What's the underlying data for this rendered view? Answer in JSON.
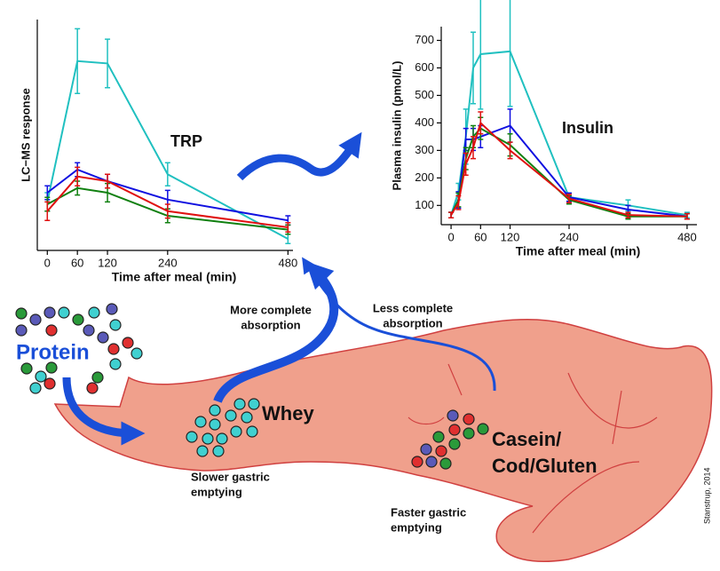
{
  "chart_data": [
    {
      "type": "line",
      "title": "TRP",
      "ylabel": "LC−MS response",
      "xlabel": "Time after meal (min)",
      "xlim": [
        -20,
        490
      ],
      "ylim": [
        0,
        100
      ],
      "xticks": [
        0,
        60,
        120,
        240,
        480
      ],
      "series": [
        {
          "color": "#20c0c0",
          "x": [
            0,
            60,
            120,
            240,
            480
          ],
          "values": [
            21,
            82,
            81,
            33,
            5
          ],
          "errors": [
            4,
            14,
            10.5,
            5,
            2
          ]
        },
        {
          "color": "#1010e0",
          "x": [
            0,
            60,
            120,
            240,
            480
          ],
          "values": [
            25,
            35,
            30,
            22,
            13
          ],
          "errors": [
            3,
            3,
            3,
            4,
            2
          ]
        },
        {
          "color": "#108010",
          "x": [
            0,
            60,
            120,
            240,
            480
          ],
          "values": [
            20,
            27,
            25,
            15,
            9
          ],
          "errors": [
            3,
            3,
            4,
            3,
            2
          ]
        },
        {
          "color": "#e01010",
          "x": [
            0,
            60,
            120,
            240,
            480
          ],
          "values": [
            17,
            32,
            30,
            17,
            10
          ],
          "errors": [
            4,
            4,
            3,
            3,
            2
          ]
        }
      ]
    },
    {
      "type": "line",
      "title": "Insulin",
      "ylabel": "Plasma insulin (pmol/L)",
      "xlabel": "Time after meal (min)",
      "xlim": [
        -20,
        500
      ],
      "ylim": [
        30,
        750
      ],
      "xticks": [
        0,
        60,
        120,
        240,
        480
      ],
      "yticks": [
        100,
        200,
        300,
        400,
        500,
        600,
        700
      ],
      "series": [
        {
          "color": "#20c0c0",
          "x": [
            0,
            15,
            30,
            45,
            60,
            120,
            240,
            360,
            480
          ],
          "values": [
            65,
            150,
            350,
            600,
            650,
            660,
            130,
            100,
            65
          ],
          "errors": [
            10,
            30,
            100,
            130,
            200,
            200,
            15,
            20,
            10
          ]
        },
        {
          "color": "#1010e0",
          "x": [
            0,
            15,
            30,
            45,
            60,
            120,
            240,
            360,
            480
          ],
          "values": [
            65,
            120,
            340,
            340,
            350,
            390,
            130,
            85,
            60
          ],
          "errors": [
            10,
            30,
            40,
            40,
            40,
            60,
            15,
            15,
            10
          ]
        },
        {
          "color": "#108010",
          "x": [
            0,
            15,
            30,
            45,
            60,
            120,
            240,
            360,
            480
          ],
          "values": [
            65,
            120,
            270,
            350,
            380,
            320,
            120,
            60,
            60
          ],
          "errors": [
            10,
            25,
            40,
            40,
            40,
            40,
            15,
            10,
            10
          ]
        },
        {
          "color": "#e01010",
          "x": [
            0,
            15,
            30,
            45,
            60,
            120,
            240,
            360,
            480
          ],
          "values": [
            65,
            110,
            250,
            310,
            400,
            300,
            125,
            65,
            60
          ],
          "errors": [
            10,
            25,
            40,
            40,
            40,
            30,
            15,
            10,
            10
          ]
        }
      ]
    }
  ],
  "diagram": {
    "protein": "Protein",
    "more_absorption": [
      "More complete",
      "absorption"
    ],
    "less_absorption": [
      "Less complete",
      "absorption"
    ],
    "whey": "Whey",
    "casein": [
      "Casein/",
      "Cod/Gluten"
    ],
    "slower": [
      "Slower gastric",
      "emptying"
    ],
    "faster": [
      "Faster gastric",
      "emptying"
    ],
    "credit": "Stanstrup, 2014"
  }
}
